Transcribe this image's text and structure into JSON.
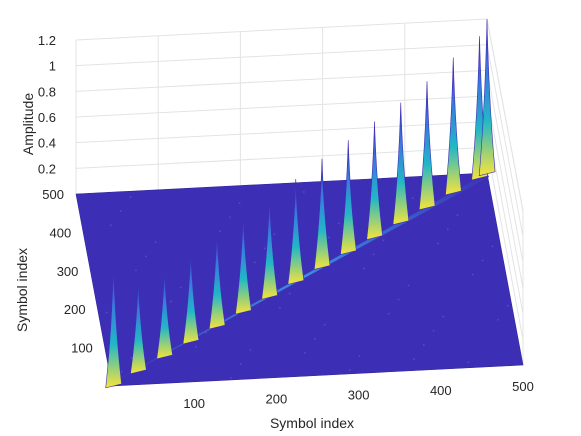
{
  "chart_data": {
    "type": "surface",
    "title": "",
    "xlabel": "Symbol index",
    "ylabel": "Symbol index",
    "zlabel": "Amplitude",
    "xlim": [
      0,
      500
    ],
    "ylim": [
      0,
      500
    ],
    "zlim": [
      0,
      1.2
    ],
    "x_ticks": [
      100,
      200,
      300,
      400,
      500
    ],
    "y_ticks": [
      100,
      200,
      300,
      400,
      500
    ],
    "z_ticks": [
      0.2,
      0.4,
      0.6,
      0.8,
      1,
      1.2
    ],
    "grid": true,
    "colormap": "parula",
    "colors": {
      "low": "#3d2fb5",
      "mid": "#1fa3d8",
      "high": "#f7e43a"
    },
    "peaks": [
      {
        "x": 2,
        "y": 2,
        "z": 0.95
      },
      {
        "x": 35,
        "y": 35,
        "z": 0.72
      },
      {
        "x": 70,
        "y": 70,
        "z": 0.68
      },
      {
        "x": 105,
        "y": 105,
        "z": 0.7
      },
      {
        "x": 140,
        "y": 140,
        "z": 0.74
      },
      {
        "x": 175,
        "y": 175,
        "z": 0.76
      },
      {
        "x": 210,
        "y": 210,
        "z": 0.78
      },
      {
        "x": 245,
        "y": 245,
        "z": 0.8
      },
      {
        "x": 280,
        "y": 280,
        "z": 0.84
      },
      {
        "x": 315,
        "y": 315,
        "z": 0.87
      },
      {
        "x": 350,
        "y": 350,
        "z": 0.9
      },
      {
        "x": 385,
        "y": 385,
        "z": 0.93
      },
      {
        "x": 420,
        "y": 420,
        "z": 0.98
      },
      {
        "x": 455,
        "y": 455,
        "z": 1.05
      },
      {
        "x": 490,
        "y": 490,
        "z": 1.1
      },
      {
        "x": 500,
        "y": 500,
        "z": 1.2
      }
    ]
  }
}
